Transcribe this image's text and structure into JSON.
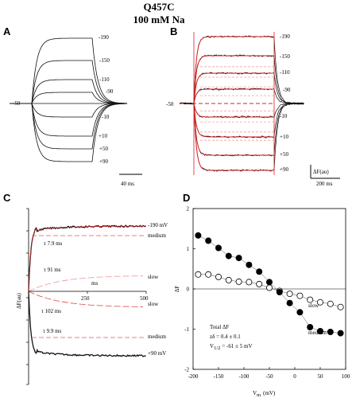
{
  "figure": {
    "title": "Q457C",
    "subtitle": "100 mM Na"
  },
  "panels": {
    "A": {
      "label": "A",
      "holding_label": "-50",
      "voltage_labels": [
        "-190",
        "-150",
        "-110",
        "-90",
        "-10",
        "+10",
        "+50",
        "+90"
      ],
      "scalebar_label": "40 ms"
    },
    "B": {
      "label": "B",
      "holding_label": "-50",
      "voltage_labels": [
        "-190",
        "-150",
        "-110",
        "-90",
        "-10",
        "+10",
        "+50",
        "+90"
      ],
      "scalebar_y_label": "ΔF(au)",
      "scalebar_x_label": "200 ms"
    },
    "C": {
      "label": "C",
      "ylabel": "ΔF(au)",
      "top_trace_label": "-190 mV",
      "bottom_trace_label": "+90 mV",
      "component_labels": [
        "medium",
        "slow",
        "slow",
        "medium"
      ],
      "tau_labels": [
        "τ 7.9 ms",
        "τ 91 ms",
        "τ 102 ms",
        "τ 9.9 ms"
      ],
      "axis_unit_label": "ms",
      "axis_ticks": [
        "250",
        "500"
      ]
    },
    "D": {
      "label": "D"
    }
  },
  "chart_data": [
    {
      "type": "scatter",
      "panel": "D",
      "xlabel": "V",
      "xlabel_sub": "m",
      "xlabel_unit": "(mV)",
      "ylabel": "ΔF",
      "xlim": [
        -200,
        100
      ],
      "ylim": [
        -2,
        2
      ],
      "x_ticks": [
        "-200",
        "-150",
        "-100",
        "-50",
        "0",
        "50",
        "100"
      ],
      "y_ticks": [
        "2",
        "1",
        "0",
        "-1",
        "-2"
      ],
      "annotation_lines": [
        "Total ΔF",
        "zδ = 0.4 ± 0.1",
        "V",
        "1/2",
        "= -61 ± 5 mV"
      ],
      "series": [
        {
          "name": "slow",
          "marker": "open-circle",
          "x": [
            -190,
            -170,
            -150,
            -130,
            -110,
            -90,
            -70,
            -50,
            -30,
            -10,
            10,
            30,
            50,
            70,
            90
          ],
          "y": [
            0.36,
            0.36,
            0.3,
            0.22,
            0.18,
            0.17,
            0.12,
            0.03,
            -0.05,
            -0.12,
            -0.17,
            -0.27,
            -0.33,
            -0.37,
            -0.45
          ]
        },
        {
          "name": "medium",
          "marker": "filled-circle",
          "x": [
            -190,
            -170,
            -150,
            -130,
            -110,
            -90,
            -70,
            -50,
            -30,
            -10,
            10,
            30,
            50,
            70,
            90
          ],
          "y": [
            1.33,
            1.2,
            1.02,
            0.82,
            0.77,
            0.6,
            0.43,
            0.17,
            -0.08,
            -0.35,
            -0.58,
            -0.95,
            -1.05,
            -1.07,
            -1.1
          ]
        }
      ]
    }
  ],
  "colors": {
    "fit": "#d42020",
    "fit_dashed": "#e05a5a",
    "fit_light": "#f0a0a0",
    "trace": "#111111"
  }
}
